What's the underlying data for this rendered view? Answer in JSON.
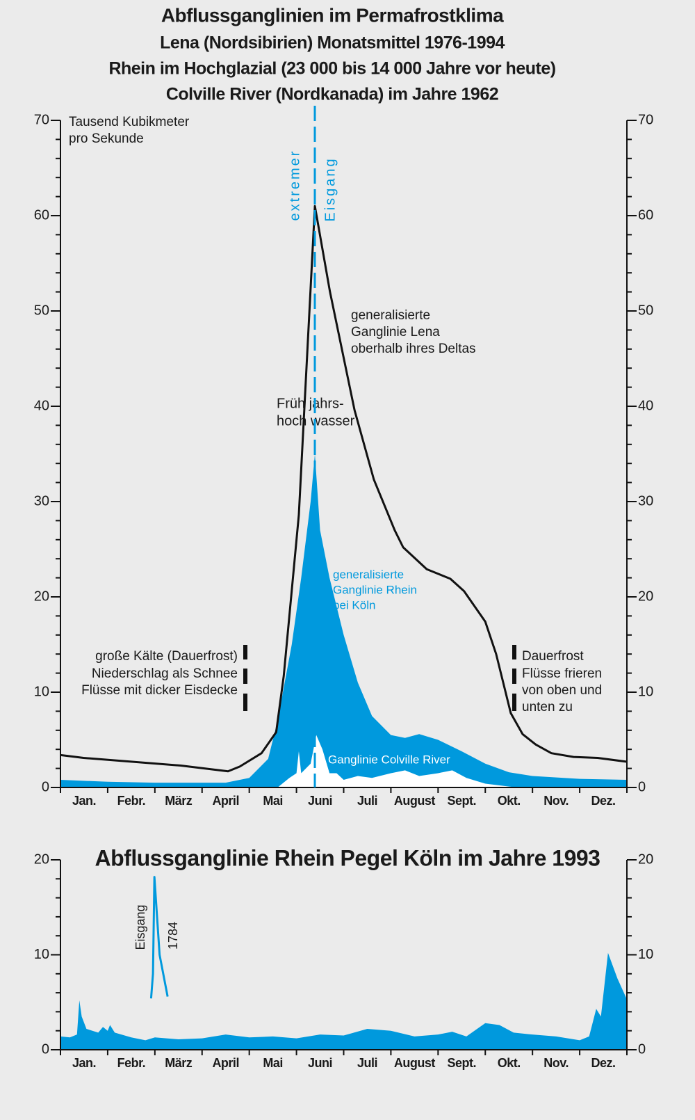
{
  "chart_data": [
    {
      "type": "area",
      "title": "Abflussganglinien im Permafrostklima",
      "subtitle": [
        "Lena (Nordsibirien) Monatsmittel 1976-1994",
        "Rhein im Hochglazial (23 000 bis 14 000 Jahre vor heute)",
        "Colville River (Nordkanada) im Jahre 1962"
      ],
      "annotations": [
        "Tausend Kubikmeter",
        "pro Sekunde",
        "extremer",
        "Eisgang",
        "generalisierte",
        "Ganglinie Lena",
        "oberhalb ihres Deltas",
        "Früh jahrs-",
        "hoch wasser",
        "generalisierte",
        "Ganglinie Rhein",
        "bei Köln",
        "Ganglinie Colville River",
        "große Kälte (Dauerfrost)",
        "Niederschlag als Schnee",
        "Flüsse mit dicker Eisdecke",
        "Dauerfrost",
        "Flüsse frieren",
        "von oben und",
        "unten zu"
      ],
      "xlim": [
        0,
        12
      ],
      "xticks": [
        {
          "value": 0.5,
          "label": "Jan."
        },
        {
          "value": 1.5,
          "label": "Febr."
        },
        {
          "value": 2.5,
          "label": "März"
        },
        {
          "value": 3.5,
          "label": "April"
        },
        {
          "value": 4.5,
          "label": "Mai"
        },
        {
          "value": 5.5,
          "label": "Juni"
        },
        {
          "value": 6.5,
          "label": "Juli"
        },
        {
          "value": 7.5,
          "label": "August"
        },
        {
          "value": 8.5,
          "label": "Sept."
        },
        {
          "value": 9.5,
          "label": "Okt."
        },
        {
          "value": 10.5,
          "label": "Nov."
        },
        {
          "value": 11.5,
          "label": "Dez."
        }
      ],
      "xminorticks": [
        0,
        1,
        2,
        3,
        4,
        5,
        6,
        7,
        8,
        9,
        10,
        11,
        12
      ],
      "ylim": [
        0,
        70
      ],
      "yticks": [
        0,
        10,
        20,
        30,
        40,
        50,
        60,
        70
      ],
      "yminorticks": [
        0,
        2,
        4,
        6,
        8,
        10,
        12,
        14,
        16,
        18,
        20,
        22,
        24,
        26,
        28,
        30,
        32,
        34,
        36,
        38,
        40,
        42,
        44,
        46,
        48,
        50,
        52,
        54,
        56,
        58,
        60,
        62,
        64,
        66,
        68,
        70
      ],
      "series": [
        {
          "kind": "area",
          "color": "#0099dd",
          "x": [
            0,
            1,
            2,
            3,
            3.5,
            4.0,
            4.4,
            4.6,
            4.9,
            5.1,
            5.3,
            5.39,
            5.5,
            5.7,
            6.0,
            6.3,
            6.6,
            7.0,
            7.3,
            7.6,
            8.0,
            8.5,
            9.0,
            9.5,
            10,
            11,
            12
          ],
          "values": [
            0.8,
            0.6,
            0.5,
            0.5,
            0.5,
            1.0,
            3,
            7,
            15,
            22,
            30,
            35,
            27,
            22,
            16,
            11,
            7.5,
            5.5,
            5.2,
            5.6,
            5.0,
            3.8,
            2.5,
            1.6,
            1.2,
            0.9,
            0.8
          ]
        },
        {
          "kind": "area",
          "color": "#ffffff",
          "x": [
            4.6,
            4.85,
            5.0,
            5.05,
            5.1,
            5.2,
            5.3,
            5.42,
            5.55,
            5.7,
            5.85,
            6.0,
            6.3,
            6.6,
            7.0,
            7.3,
            7.6,
            8.0,
            8.3,
            8.6,
            9.0,
            9.5,
            9.7
          ],
          "values": [
            0,
            1,
            1.5,
            3.8,
            1.5,
            2,
            2.5,
            5.5,
            4,
            1.5,
            1.5,
            0.8,
            1.2,
            1,
            1.5,
            1.8,
            1.2,
            1.5,
            1.8,
            1,
            0.4,
            0.1,
            0
          ]
        },
        {
          "kind": "line",
          "color": "#111111",
          "x": [
            0,
            0.49,
            2.55,
            3.55,
            3.8,
            4.26,
            4.57,
            4.73,
            5.05,
            5.39,
            5.71,
            6.23,
            6.64,
            7.08,
            7.26,
            7.76,
            8.26,
            8.55,
            9.0,
            9.23,
            9.54,
            9.79,
            10.07,
            10.4,
            10.87,
            11.38,
            12
          ],
          "values": [
            3.4,
            3.1,
            2.3,
            1.7,
            2.2,
            3.6,
            5.8,
            11.7,
            28.6,
            61,
            52,
            39.6,
            32.3,
            27,
            25.2,
            22.9,
            21.9,
            20.6,
            17.4,
            14,
            7.8,
            5.6,
            4.5,
            3.6,
            3.2,
            3.1,
            2.7
          ]
        }
      ]
    },
    {
      "type": "area",
      "title": "Abflussganglinie Rhein Pegel Köln  im Jahre 1993",
      "annotations": [
        "Eisgang"
      ],
      "xlim": [
        0,
        12
      ],
      "xticks": [
        {
          "value": 0.5,
          "label": "Jan."
        },
        {
          "value": 1.5,
          "label": "Febr."
        },
        {
          "value": 2.5,
          "label": "März"
        },
        {
          "value": 3.5,
          "label": "April"
        },
        {
          "value": 4.5,
          "label": "Mai"
        },
        {
          "value": 5.5,
          "label": "Juni"
        },
        {
          "value": 6.5,
          "label": "Juli"
        },
        {
          "value": 7.5,
          "label": "August"
        },
        {
          "value": 8.5,
          "label": "Sept."
        },
        {
          "value": 9.5,
          "label": "Okt."
        },
        {
          "value": 10.5,
          "label": "Nov."
        },
        {
          "value": 11.5,
          "label": "Dez."
        }
      ],
      "xminorticks": [
        0,
        1,
        2,
        3,
        4,
        5,
        6,
        7,
        8,
        9,
        10,
        11,
        12
      ],
      "ylim": [
        0,
        20
      ],
      "yticks": [
        0,
        10,
        20
      ],
      "yminorticks": [
        0,
        2,
        4,
        6,
        8,
        10,
        12,
        14,
        16,
        18,
        20
      ],
      "series": [
        {
          "kind": "area",
          "color": "#0099dd",
          "x": [
            0,
            0.2,
            0.35,
            0.4,
            0.45,
            0.55,
            0.8,
            0.9,
            1.0,
            1.05,
            1.15,
            1.5,
            1.8,
            2.0,
            2.5,
            3.0,
            3.5,
            4.0,
            4.5,
            5.0,
            5.5,
            6.0,
            6.5,
            7.0,
            7.5,
            8.0,
            8.3,
            8.6,
            9.0,
            9.3,
            9.6,
            10.0,
            10.5,
            11.0,
            11.2,
            11.35,
            11.45,
            11.6,
            11.8,
            12
          ],
          "values": [
            1.4,
            1.3,
            1.6,
            5.2,
            3.5,
            2.2,
            1.8,
            2.4,
            2.0,
            2.6,
            1.8,
            1.3,
            1.0,
            1.3,
            1.1,
            1.2,
            1.6,
            1.3,
            1.4,
            1.2,
            1.6,
            1.5,
            2.2,
            2.0,
            1.4,
            1.6,
            1.9,
            1.4,
            2.8,
            2.6,
            1.8,
            1.6,
            1.4,
            1.0,
            1.4,
            4.3,
            3.5,
            10.2,
            7.5,
            5.3
          ]
        },
        {
          "kind": "line",
          "name": "1784",
          "color": "#0099dd",
          "x": [
            1.92,
            1.96,
            1.99,
            2.1,
            2.27
          ],
          "values": [
            5.4,
            8,
            18.2,
            10,
            5.6
          ]
        }
      ]
    }
  ]
}
